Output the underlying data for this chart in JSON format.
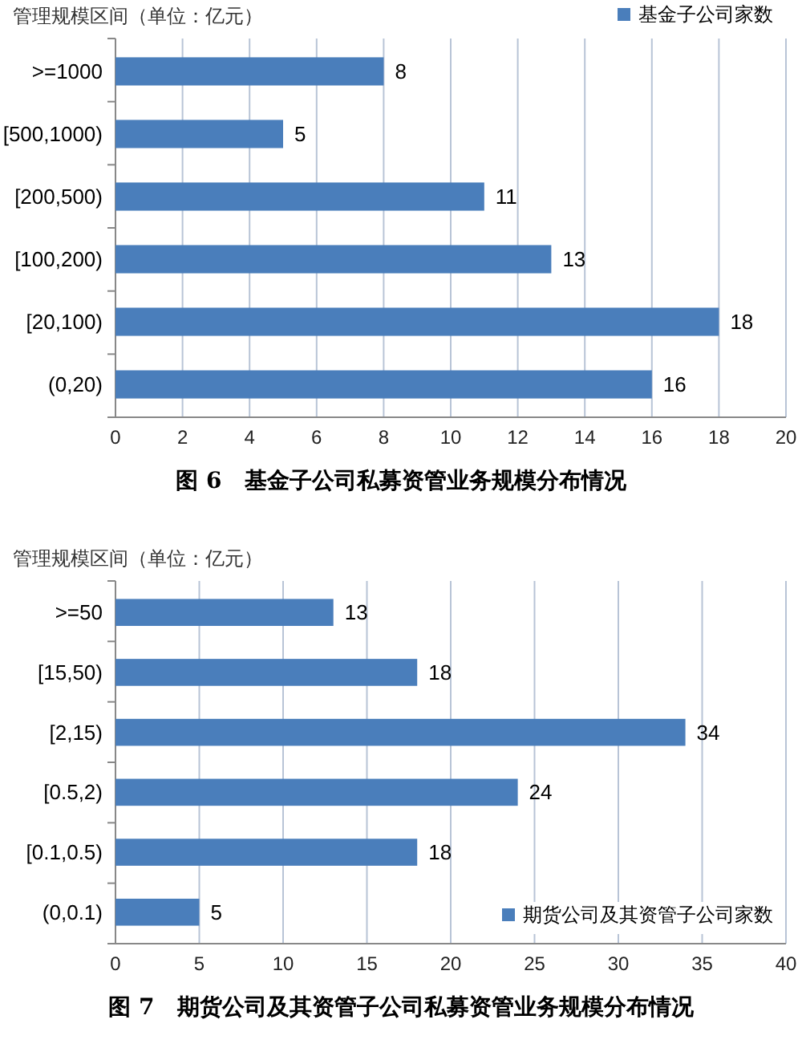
{
  "chart_data": [
    {
      "type": "bar",
      "orientation": "horizontal",
      "title": "图 6　基金子公司私募资管业务规模分布情况",
      "ylabel": "管理规模区间（单位：亿元）",
      "categories": [
        ">=1000",
        "[500,1000)",
        "[200,500)",
        "[100,200)",
        "[20,100)",
        "(0,20)"
      ],
      "series": [
        {
          "name": "基金子公司家数",
          "color": "#4a7ebb",
          "values": [
            8,
            5,
            11,
            13,
            18,
            16
          ]
        }
      ],
      "xlim": [
        0,
        20
      ],
      "xticks": [
        0,
        2,
        4,
        6,
        8,
        10,
        12,
        14,
        16,
        18,
        20
      ],
      "grid": "x",
      "legend": "top right",
      "data_labels": true
    },
    {
      "type": "bar",
      "orientation": "horizontal",
      "title": "图 7　期货公司及其资管子公司私募资管业务规模分布情况",
      "ylabel": "管理规模区间（单位：亿元）",
      "categories": [
        ">=50",
        "[15,50)",
        "[2,15)",
        "[0.5,2)",
        "[0.1,0.5)",
        "(0,0.1)"
      ],
      "series": [
        {
          "name": "期货公司及其资管子公司家数",
          "color": "#4a7ebb",
          "values": [
            13,
            18,
            34,
            24,
            18,
            5
          ]
        }
      ],
      "xlim": [
        0,
        40
      ],
      "xticks": [
        0,
        5,
        10,
        15,
        20,
        25,
        30,
        35,
        40
      ],
      "grid": "x",
      "legend": "bottom right",
      "data_labels": true
    }
  ]
}
